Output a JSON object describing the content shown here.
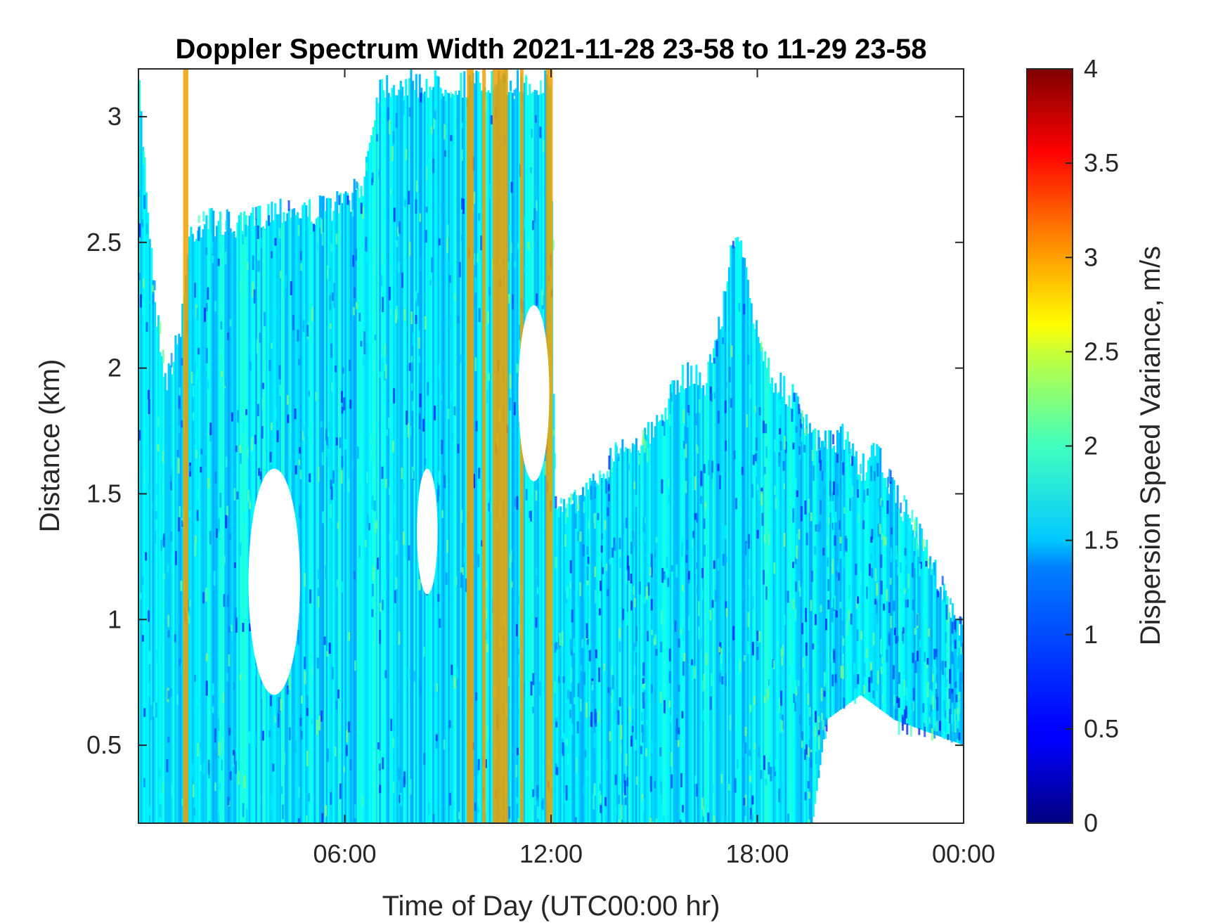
{
  "chart_data": {
    "type": "heatmap",
    "title": "Doppler Spectrum Width 2021-11-28 23-58 to 11-29 23-58",
    "xlabel": "Time of Day (UTC00:00 hr)",
    "ylabel": "Distance (km)",
    "xlim_hours": [
      0,
      24
    ],
    "ylim": [
      0.19,
      3.19
    ],
    "x_ticks": [
      {
        "hours": 6,
        "label": "06:00"
      },
      {
        "hours": 12,
        "label": "12:00"
      },
      {
        "hours": 18,
        "label": "18:00"
      },
      {
        "hours": 24,
        "label": "00:00"
      }
    ],
    "y_ticks": [
      {
        "value": 0.5,
        "label": "0.5"
      },
      {
        "value": 1,
        "label": "1"
      },
      {
        "value": 1.5,
        "label": "1.5"
      },
      {
        "value": 2,
        "label": "2"
      },
      {
        "value": 2.5,
        "label": "2.5"
      },
      {
        "value": 3,
        "label": "3"
      }
    ],
    "colorbar": {
      "label": "Dispersion Speed Variance, m/s",
      "range": [
        0,
        4
      ],
      "colormap": "jet",
      "ticks": [
        {
          "value": 0,
          "label": "0"
        },
        {
          "value": 0.5,
          "label": "0.5"
        },
        {
          "value": 1,
          "label": "1"
        },
        {
          "value": 1.5,
          "label": "1.5"
        },
        {
          "value": 2,
          "label": "2"
        },
        {
          "value": 2.5,
          "label": "2.5"
        },
        {
          "value": 3,
          "label": "3"
        },
        {
          "value": 3.5,
          "label": "3.5"
        },
        {
          "value": 4,
          "label": "4"
        }
      ]
    },
    "grid": false,
    "echo_top_km": [
      [
        0.0,
        3.19
      ],
      [
        0.5,
        2.3
      ],
      [
        0.8,
        2.0
      ],
      [
        1.2,
        2.2
      ],
      [
        1.5,
        2.6
      ],
      [
        2.0,
        2.65
      ],
      [
        3.0,
        2.62
      ],
      [
        4.0,
        2.7
      ],
      [
        5.0,
        2.68
      ],
      [
        6.0,
        2.72
      ],
      [
        6.5,
        2.78
      ],
      [
        7.0,
        3.19
      ],
      [
        8.0,
        3.19
      ],
      [
        9.0,
        3.19
      ],
      [
        10.0,
        3.19
      ],
      [
        11.0,
        3.19
      ],
      [
        12.0,
        3.19
      ],
      [
        12.1,
        1.5
      ],
      [
        13.0,
        1.55
      ],
      [
        14.0,
        1.75
      ],
      [
        15.0,
        1.8
      ],
      [
        15.5,
        1.95
      ],
      [
        16.0,
        2.05
      ],
      [
        16.5,
        2.0
      ],
      [
        17.0,
        2.3
      ],
      [
        17.4,
        2.65
      ],
      [
        17.8,
        2.3
      ],
      [
        18.0,
        2.2
      ],
      [
        18.5,
        2.0
      ],
      [
        19.0,
        1.95
      ],
      [
        19.5,
        1.8
      ],
      [
        20.0,
        1.75
      ],
      [
        20.5,
        1.8
      ],
      [
        21.0,
        1.65
      ],
      [
        21.5,
        1.72
      ],
      [
        22.0,
        1.55
      ],
      [
        22.5,
        1.45
      ],
      [
        23.0,
        1.3
      ],
      [
        23.5,
        1.15
      ],
      [
        24.0,
        1.0
      ]
    ],
    "echo_base_km": [
      [
        0.0,
        0.19
      ],
      [
        19.0,
        0.19
      ],
      [
        19.6,
        0.19
      ],
      [
        20.0,
        0.6
      ],
      [
        21.0,
        0.7
      ],
      [
        22.0,
        0.6
      ],
      [
        23.0,
        0.55
      ],
      [
        24.0,
        0.5
      ]
    ],
    "background_width_m_s": 1.4,
    "high_width_bands": [
      {
        "start_hours": 1.3,
        "end_hours": 1.45,
        "value": 3.0
      },
      {
        "start_hours": 9.55,
        "end_hours": 9.75,
        "value": 3.0
      },
      {
        "start_hours": 10.0,
        "end_hours": 10.1,
        "value": 3.0
      },
      {
        "start_hours": 10.3,
        "end_hours": 10.75,
        "value": 3.0
      },
      {
        "start_hours": 11.1,
        "end_hours": 11.2,
        "value": 3.0
      },
      {
        "start_hours": 11.85,
        "end_hours": 12.05,
        "value": 3.0
      }
    ],
    "gaps": [
      {
        "x_hours": [
          3.2,
          4.7
        ],
        "y_km": [
          0.7,
          1.6
        ]
      },
      {
        "x_hours": [
          8.1,
          8.7
        ],
        "y_km": [
          1.1,
          1.6
        ]
      },
      {
        "x_hours": [
          11.05,
          11.95
        ],
        "y_km": [
          1.55,
          2.25
        ]
      }
    ]
  }
}
